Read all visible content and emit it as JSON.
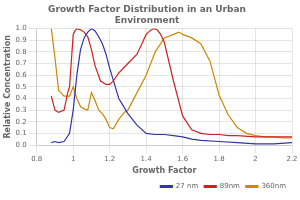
{
  "chart_data": {
    "type": "line",
    "title": "Growth Factor Distribution in an Urban\nEnvironment",
    "xlabel": "Growth Factor",
    "ylabel": "Relative Concentration",
    "xlim": [
      0.8,
      2.2
    ],
    "ylim": [
      0,
      1.0
    ],
    "xticks": [
      0.8,
      1,
      1.2,
      1.4,
      1.6,
      1.8,
      2,
      2.2
    ],
    "yticks": [
      {
        "value": 0,
        "label": "0.0"
      },
      0.1,
      0.2,
      0.3,
      0.4,
      0.5,
      0.6,
      0.7,
      0.8,
      0.9,
      {
        "value": 1,
        "label": "1.0"
      }
    ],
    "grid": true,
    "legend": "lower right",
    "series": [
      {
        "name": "27 nm",
        "color": "#3333aa",
        "x": [
          0.88,
          0.9,
          0.92,
          0.95,
          0.98,
          1.0,
          1.02,
          1.04,
          1.06,
          1.08,
          1.1,
          1.12,
          1.14,
          1.16,
          1.18,
          1.2,
          1.25,
          1.3,
          1.35,
          1.4,
          1.45,
          1.5,
          1.55,
          1.6,
          1.65,
          1.7,
          1.8,
          1.9,
          2.0,
          2.1,
          2.2
        ],
        "values": [
          0.02,
          0.03,
          0.02,
          0.03,
          0.1,
          0.3,
          0.6,
          0.82,
          0.92,
          0.97,
          1.0,
          0.98,
          0.93,
          0.87,
          0.78,
          0.66,
          0.4,
          0.27,
          0.17,
          0.1,
          0.09,
          0.09,
          0.08,
          0.07,
          0.05,
          0.04,
          0.03,
          0.02,
          0.01,
          0.01,
          0.02
        ]
      },
      {
        "name": "89nm",
        "color": "#cc2222",
        "x": [
          0.88,
          0.9,
          0.92,
          0.95,
          0.97,
          0.98,
          1.0,
          1.01,
          1.02,
          1.04,
          1.06,
          1.08,
          1.1,
          1.12,
          1.15,
          1.18,
          1.2,
          1.22,
          1.25,
          1.3,
          1.35,
          1.38,
          1.4,
          1.42,
          1.44,
          1.46,
          1.48,
          1.5,
          1.55,
          1.6,
          1.65,
          1.7,
          1.75,
          1.8,
          1.85,
          1.9,
          2.0,
          2.1,
          2.15,
          2.2
        ],
        "values": [
          0.42,
          0.3,
          0.28,
          0.3,
          0.45,
          0.5,
          0.95,
          0.98,
          1.0,
          0.99,
          0.97,
          0.93,
          0.82,
          0.68,
          0.55,
          0.52,
          0.52,
          0.55,
          0.62,
          0.7,
          0.78,
          0.88,
          0.95,
          0.98,
          1.0,
          0.99,
          0.95,
          0.88,
          0.55,
          0.25,
          0.13,
          0.1,
          0.09,
          0.09,
          0.08,
          0.08,
          0.07,
          0.07,
          0.07,
          0.07
        ]
      },
      {
        "name": "360nm",
        "color": "#cc8800",
        "x": [
          0.88,
          0.9,
          0.92,
          0.95,
          0.98,
          1.0,
          1.02,
          1.04,
          1.06,
          1.08,
          1.1,
          1.12,
          1.14,
          1.16,
          1.18,
          1.2,
          1.22,
          1.25,
          1.28,
          1.3,
          1.35,
          1.4,
          1.45,
          1.5,
          1.55,
          1.58,
          1.6,
          1.65,
          1.7,
          1.75,
          1.8,
          1.85,
          1.9,
          1.95,
          2.0,
          2.05,
          2.1,
          2.15,
          2.2
        ],
        "values": [
          1.0,
          0.75,
          0.47,
          0.42,
          0.42,
          0.5,
          0.4,
          0.33,
          0.31,
          0.3,
          0.45,
          0.38,
          0.3,
          0.27,
          0.22,
          0.15,
          0.14,
          0.22,
          0.28,
          0.3,
          0.45,
          0.6,
          0.8,
          0.92,
          0.95,
          0.97,
          0.95,
          0.92,
          0.87,
          0.72,
          0.43,
          0.26,
          0.15,
          0.1,
          0.08,
          0.07,
          0.07,
          0.06,
          0.06
        ]
      }
    ]
  }
}
